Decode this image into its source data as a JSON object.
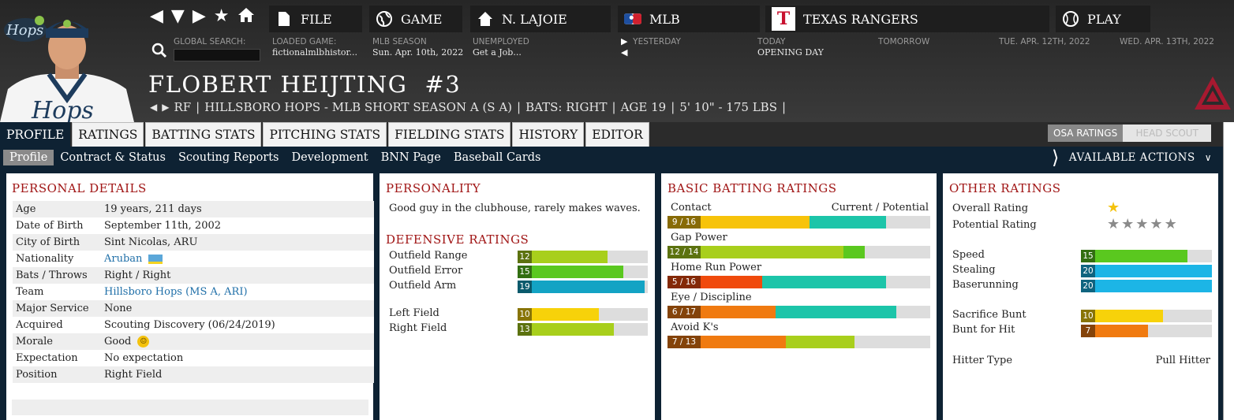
{
  "nav": {
    "file": "FILE",
    "game": "GAME",
    "manager": "N. LAJOIE",
    "league": "MLB",
    "team": "TEXAS RANGERS",
    "play": "PLAY"
  },
  "info": {
    "search_label": "GLOBAL SEARCH:",
    "loaded_label": "LOADED GAME:",
    "loaded_value": "fictionalmlbhistor...",
    "season_label": "MLB SEASON",
    "season_value": "Sun. Apr. 10th, 2022",
    "job_label": "UNEMPLOYED",
    "job_value": "Get a Job...",
    "yesterday": "YESTERDAY",
    "today": "TODAY",
    "today_value": "OPENING DAY",
    "tomorrow": "TOMORROW",
    "day4": "TUE. APR. 12TH, 2022",
    "day5": "WED. APR. 13TH, 2022"
  },
  "player": {
    "name": "FLOBERT HEIJTING",
    "number": "#3",
    "position": "RF",
    "team": "HILLSBORO HOPS - MLB SHORT SEASON A (S A)",
    "bats": "BATS: RIGHT",
    "age": "AGE 19",
    "size": "5' 10\" - 175 LBS"
  },
  "tabs": [
    "PROFILE",
    "RATINGS",
    "BATTING STATS",
    "PITCHING STATS",
    "FIELDING STATS",
    "HISTORY",
    "EDITOR"
  ],
  "osa": {
    "on": "OSA RATINGS",
    "off": "HEAD SCOUT"
  },
  "subnav": [
    "Profile",
    "Contract & Status",
    "Scouting Reports",
    "Development",
    "BNN Page",
    "Baseball Cards"
  ],
  "available_actions": "AVAILABLE ACTIONS",
  "personal": {
    "title": "PERSONAL DETAILS",
    "rows": [
      {
        "k": "Age",
        "v": "19 years, 211 days"
      },
      {
        "k": "Date of Birth",
        "v": "September 11th, 2002"
      },
      {
        "k": "City of Birth",
        "v": "Sint Nicolas, ARU"
      },
      {
        "k": "Nationality",
        "v": "Aruban"
      },
      {
        "k": "Bats / Throws",
        "v": "Right / Right"
      },
      {
        "k": "Team",
        "v": "Hillsboro Hops (MS A, ARI)"
      },
      {
        "k": "Major Service",
        "v": "None"
      },
      {
        "k": "Acquired",
        "v": "Scouting Discovery (06/24/2019)"
      },
      {
        "k": "Morale",
        "v": "Good"
      },
      {
        "k": "Expectation",
        "v": "No expectation"
      },
      {
        "k": "Position",
        "v": "Right Field"
      }
    ]
  },
  "personality": {
    "title": "PERSONALITY",
    "text": "Good guy in the clubhouse, rarely makes waves."
  },
  "defensive": {
    "title": "DEFENSIVE RATINGS",
    "rows": [
      {
        "label": "Outfield Range",
        "value": "12",
        "fill": 0.65,
        "color": "#a8cf1c"
      },
      {
        "label": "Outfield Error",
        "value": "15",
        "fill": 0.79,
        "color": "#5ac81f"
      },
      {
        "label": "Outfield Arm",
        "value": "19",
        "fill": 0.97,
        "color": "#13a3c4"
      },
      {
        "label": "Left Field",
        "value": "10",
        "fill": 0.58,
        "color": "#f7d20a"
      },
      {
        "label": "Right Field",
        "value": "13",
        "fill": 0.71,
        "color": "#a8cf1c"
      }
    ]
  },
  "batting": {
    "title": "BASIC BATTING RATINGS",
    "header": "Current / Potential",
    "rows": [
      {
        "label": "Contact",
        "value": "9 / 16",
        "cur": 0.54,
        "pot": 0.83,
        "cur_color": "#f7c30a",
        "pot_color": "#1cc5a9"
      },
      {
        "label": "Gap Power",
        "value": "12 / 14",
        "cur": 0.67,
        "pot": 0.75,
        "cur_color": "#a8cf1c",
        "pot_color": "#5ac81f"
      },
      {
        "label": "Home Run Power",
        "value": "5 / 16",
        "cur": 0.36,
        "pot": 0.83,
        "cur_color": "#f04a0c",
        "pot_color": "#1cc5a9"
      },
      {
        "label": "Eye / Discipline",
        "value": "6 / 17",
        "cur": 0.41,
        "pot": 0.87,
        "cur_color": "#f07a10",
        "pot_color": "#1cc5a9"
      },
      {
        "label": "Avoid K's",
        "value": "7 / 13",
        "cur": 0.45,
        "pot": 0.71,
        "cur_color": "#f07a10",
        "pot_color": "#a8cf1c"
      }
    ]
  },
  "other": {
    "title": "OTHER RATINGS",
    "overall_label": "Overall Rating",
    "potential_label": "Potential Rating",
    "overall_stars": 1,
    "potential_stars": 5,
    "rows": [
      {
        "label": "Speed",
        "value": "15",
        "fill": 0.79,
        "color": "#5ac81f"
      },
      {
        "label": "Stealing",
        "value": "20",
        "fill": 1.0,
        "color": "#1cb5e6"
      },
      {
        "label": "Baserunning",
        "value": "20",
        "fill": 1.0,
        "color": "#1cb5e6"
      },
      {
        "label": "Sacrifice Bunt",
        "value": "10",
        "fill": 0.58,
        "color": "#f7d20a"
      },
      {
        "label": "Bunt for Hit",
        "value": "7",
        "fill": 0.45,
        "color": "#f07a10"
      }
    ],
    "hitter_label": "Hitter Type",
    "hitter_value": "Pull Hitter"
  }
}
